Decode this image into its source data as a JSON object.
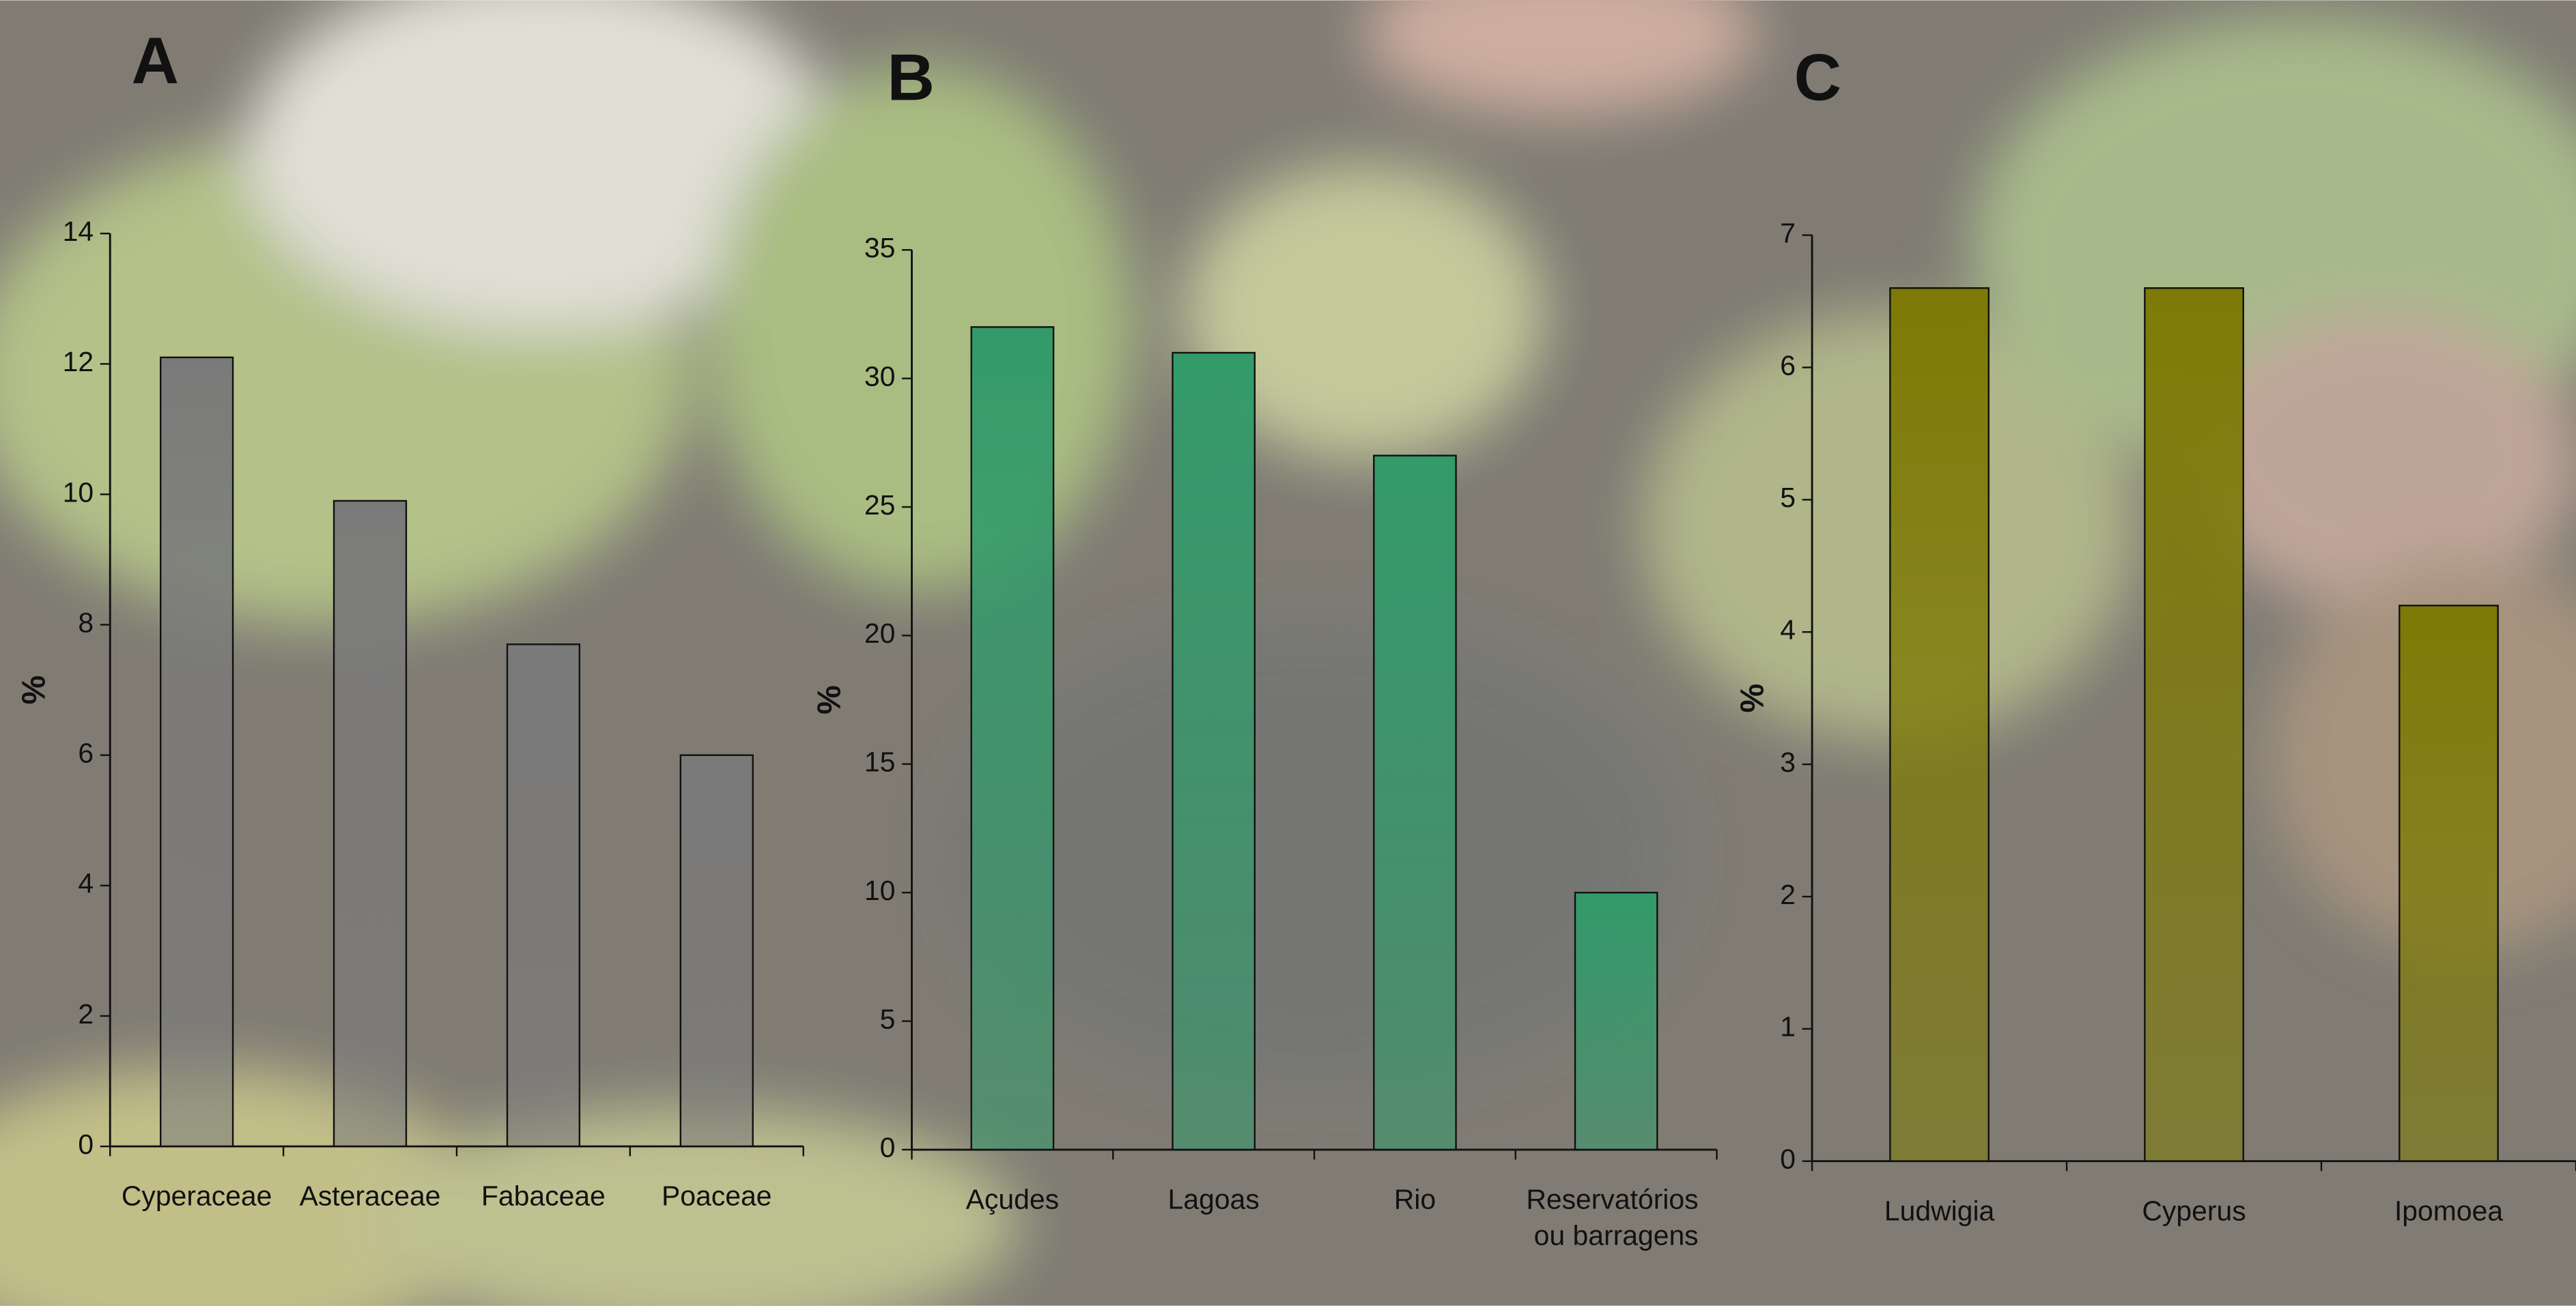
{
  "chart_data": [
    {
      "type": "bar",
      "title": "A",
      "ylabel": "%",
      "color": "#7a7a7a",
      "categories": [
        "Cyperaceae",
        "Asteraceae",
        "Fabaceae",
        "Poaceae"
      ],
      "values": [
        12.1,
        9.9,
        7.7,
        6.0
      ],
      "ylim": [
        0,
        14
      ],
      "yticks": [
        0,
        2,
        4,
        6,
        8,
        10,
        12,
        14
      ]
    },
    {
      "type": "bar",
      "title": "B",
      "ylabel": "%",
      "color": "#339a6a",
      "categories": [
        "Açudes",
        "Lagoas",
        "Rio",
        "Reservatórios ou barragens"
      ],
      "values": [
        32,
        31,
        27,
        10
      ],
      "ylim": [
        0,
        35
      ],
      "yticks": [
        0,
        5,
        10,
        15,
        20,
        25,
        30,
        35
      ]
    },
    {
      "type": "bar",
      "title": "C",
      "ylabel": "%",
      "color": "#7d7a06",
      "categories": [
        "Ludwigia",
        "Cyperus",
        "Ipomoea"
      ],
      "values": [
        6.6,
        6.6,
        4.2
      ],
      "ylim": [
        0,
        7
      ],
      "yticks": [
        0,
        1,
        2,
        3,
        4,
        5,
        6,
        7
      ]
    }
  ]
}
